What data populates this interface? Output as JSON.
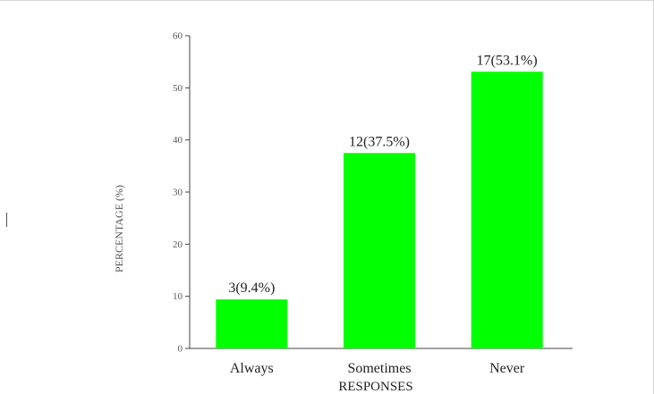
{
  "chart_data": {
    "type": "bar",
    "categories": [
      "Always",
      "Sometimes",
      "Never"
    ],
    "values": [
      9.4,
      37.5,
      53.1
    ],
    "data_labels": [
      "3(9.4%)",
      "12(37.5%)",
      "17(53.1%)"
    ],
    "xlabel": "RESPONSES",
    "ylabel": "PERCENTAGE (%)",
    "ylim": [
      0,
      60
    ],
    "yticks": [
      0,
      10,
      20,
      30,
      40,
      50,
      60
    ],
    "grid": false,
    "legend": "none",
    "bar_color": "#00ff00",
    "axis_color": "#444444",
    "text_color": "#222222"
  }
}
